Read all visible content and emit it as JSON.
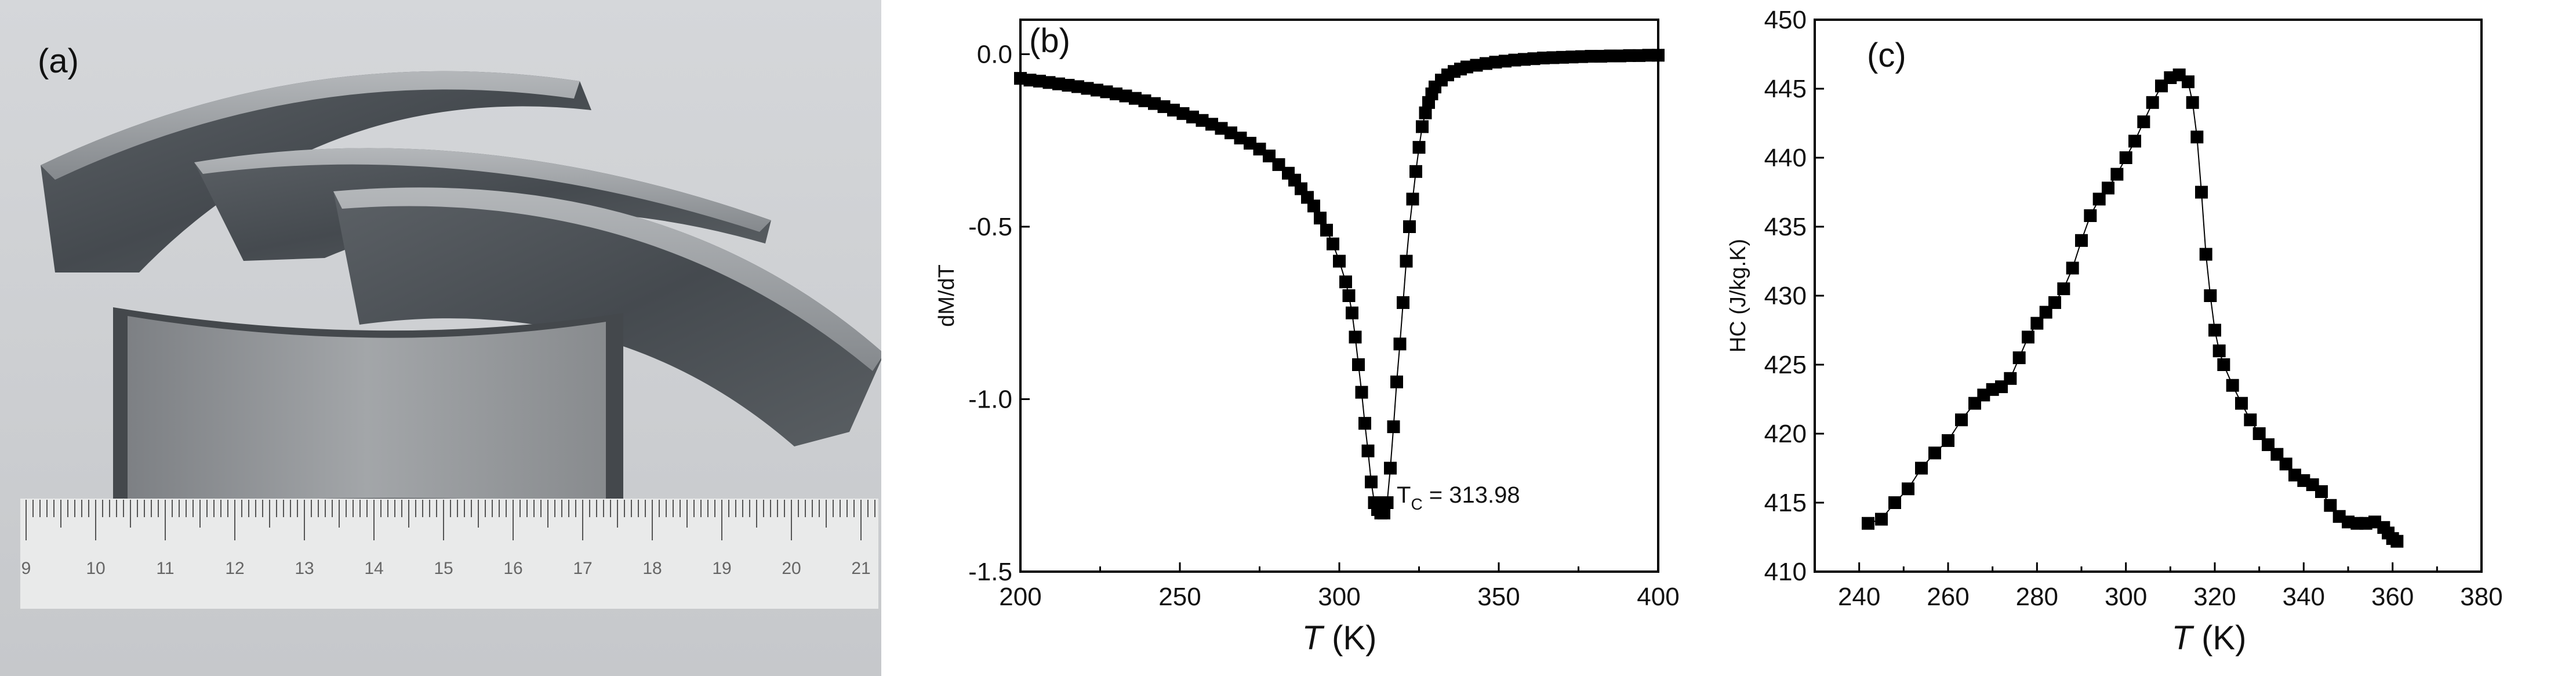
{
  "photo": {
    "label": "(a)",
    "ruler_numbers": [
      "9",
      "10",
      "11",
      "12",
      "13",
      "14",
      "15",
      "16",
      "17",
      "18",
      "19",
      "20",
      "21"
    ]
  },
  "chart_data": [
    {
      "type": "line",
      "panel": "(b)",
      "title": "",
      "xlabel_italic": "T",
      "xlabel_unit": " (K)",
      "ylabel": "dM/dT",
      "xlim": [
        200,
        400
      ],
      "ylim": [
        -1.5,
        0.1
      ],
      "xticks": [
        200,
        250,
        300,
        350,
        400
      ],
      "xtick_labels": [
        "200",
        "250",
        "300",
        "350",
        "400"
      ],
      "yticks": [
        0.0,
        -0.5,
        -1.0,
        -1.5
      ],
      "ytick_labels": [
        "0.0",
        "-0.5",
        "-1.0",
        "-1.5"
      ],
      "annotation": {
        "prefix": "T",
        "sub": "C",
        "text": " = 313.98",
        "x": 318,
        "y": -1.3
      },
      "series": [
        {
          "name": "dM/dT",
          "marker": "square",
          "x": [
            200,
            203,
            206,
            209,
            212,
            215,
            218,
            221,
            224,
            227,
            230,
            233,
            236,
            239,
            242,
            245,
            248,
            251,
            254,
            257,
            260,
            263,
            266,
            269,
            272,
            275,
            278,
            281,
            284,
            286,
            288,
            290,
            292,
            294,
            296,
            298,
            300,
            302,
            303,
            304,
            305,
            306,
            307,
            308,
            309,
            310,
            311,
            312,
            313,
            314,
            315,
            316,
            317,
            318,
            319,
            320,
            321,
            322,
            323,
            324,
            325,
            326,
            327,
            328,
            329,
            330,
            332,
            334,
            336,
            338,
            340,
            343,
            346,
            349,
            352,
            355,
            358,
            361,
            364,
            367,
            370,
            373,
            376,
            379,
            382,
            385,
            388,
            391,
            394,
            397,
            400
          ],
          "y": [
            -0.07,
            -0.075,
            -0.078,
            -0.082,
            -0.086,
            -0.09,
            -0.094,
            -0.099,
            -0.104,
            -0.109,
            -0.115,
            -0.121,
            -0.128,
            -0.135,
            -0.143,
            -0.152,
            -0.162,
            -0.172,
            -0.182,
            -0.192,
            -0.203,
            -0.215,
            -0.228,
            -0.243,
            -0.258,
            -0.275,
            -0.295,
            -0.32,
            -0.345,
            -0.365,
            -0.39,
            -0.415,
            -0.44,
            -0.475,
            -0.51,
            -0.55,
            -0.6,
            -0.66,
            -0.7,
            -0.75,
            -0.82,
            -0.9,
            -0.98,
            -1.07,
            -1.15,
            -1.24,
            -1.3,
            -1.32,
            -1.33,
            -1.33,
            -1.3,
            -1.2,
            -1.08,
            -0.95,
            -0.84,
            -0.72,
            -0.6,
            -0.5,
            -0.42,
            -0.34,
            -0.27,
            -0.21,
            -0.17,
            -0.14,
            -0.115,
            -0.095,
            -0.075,
            -0.06,
            -0.05,
            -0.043,
            -0.037,
            -0.032,
            -0.027,
            -0.023,
            -0.02,
            -0.017,
            -0.015,
            -0.013,
            -0.011,
            -0.01,
            -0.009,
            -0.008,
            -0.007,
            -0.006,
            -0.006,
            -0.005,
            -0.005,
            -0.004,
            -0.004,
            -0.003,
            -0.003
          ]
        }
      ]
    },
    {
      "type": "line",
      "panel": "(c)",
      "title": "",
      "xlabel_italic": "T",
      "xlabel_unit": " (K)",
      "ylabel": "HC (J/kg.K)",
      "xlim": [
        230,
        380
      ],
      "ylim": [
        410,
        450
      ],
      "xticks": [
        240,
        260,
        280,
        300,
        320,
        340,
        360,
        380
      ],
      "xtick_labels": [
        "240",
        "260",
        "280",
        "300",
        "320",
        "340",
        "360",
        "380"
      ],
      "yticks": [
        410,
        415,
        420,
        425,
        430,
        435,
        440,
        445,
        450
      ],
      "ytick_labels": [
        "410",
        "415",
        "420",
        "425",
        "430",
        "435",
        "440",
        "445",
        "450"
      ],
      "series": [
        {
          "name": "HC",
          "marker": "square",
          "x": [
            242,
            245,
            248,
            251,
            254,
            257,
            260,
            263,
            266,
            268,
            270,
            272,
            274,
            276,
            278,
            280,
            282,
            284,
            286,
            288,
            290,
            292,
            294,
            296,
            298,
            300,
            302,
            304,
            306,
            308,
            310,
            312,
            314,
            315,
            316,
            317,
            318,
            319,
            320,
            321,
            322,
            324,
            326,
            328,
            330,
            332,
            334,
            336,
            338,
            340,
            342,
            344,
            346,
            348,
            350,
            352,
            354,
            356,
            358,
            359,
            360,
            361
          ],
          "y": [
            413.5,
            413.8,
            415,
            416,
            417.5,
            418.6,
            419.5,
            421,
            422.2,
            422.8,
            423.2,
            423.4,
            424,
            425.5,
            427,
            428,
            428.8,
            429.5,
            430.5,
            432,
            434,
            435.8,
            437,
            437.8,
            438.8,
            440,
            441.2,
            442.6,
            444,
            445.2,
            445.8,
            446,
            445.5,
            444,
            441.5,
            437.5,
            433,
            430,
            427.5,
            426,
            425,
            423.5,
            422.2,
            421,
            420,
            419.2,
            418.5,
            417.8,
            417,
            416.6,
            416.3,
            415.8,
            414.8,
            414,
            413.6,
            413.5,
            413.5,
            413.6,
            413.2,
            412.8,
            412.4,
            412.2
          ]
        }
      ]
    }
  ]
}
